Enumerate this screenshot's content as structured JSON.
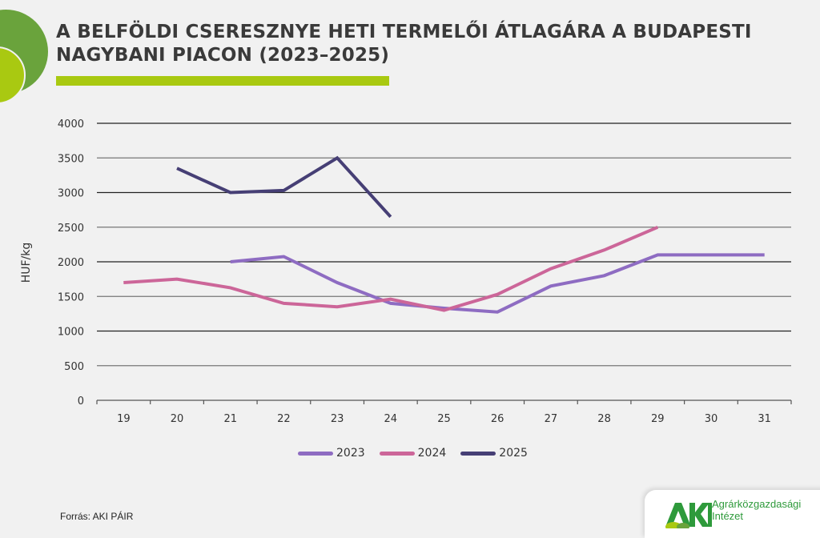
{
  "header": {
    "title": "A BELFÖLDI CSERESZNYE HETI TERMELŐI ÁTLAGÁRA A BUDAPESTI NAGYBANI PIACON (2023–2025)",
    "accent_color": "#a9c911",
    "decor_colors": [
      "#6aa33c",
      "#a9c911"
    ]
  },
  "chart_data": {
    "type": "line",
    "title": "A belföldi cseresznye heti termelői átlagára a budapesti nagybani piacon (2023–2025)",
    "xlabel": "",
    "ylabel": "HUF/kg",
    "ylim": [
      0,
      4000
    ],
    "yticks": [
      0,
      500,
      1000,
      1500,
      2000,
      2500,
      3000,
      3500,
      4000
    ],
    "grid": true,
    "legend_position": "bottom",
    "categories": [
      "19",
      "20",
      "21",
      "22",
      "23",
      "24",
      "25",
      "26",
      "27",
      "28",
      "29",
      "30",
      "31"
    ],
    "series": [
      {
        "name": "2023",
        "color": "#8e6cc2",
        "values": [
          null,
          null,
          2000,
          2075,
          1700,
          1400,
          1330,
          1275,
          1650,
          1800,
          2100,
          2100,
          2100
        ]
      },
      {
        "name": "2024",
        "color": "#cc6699",
        "values": [
          1700,
          1750,
          1625,
          1400,
          1350,
          1460,
          1300,
          1530,
          1900,
          2170,
          2500,
          null,
          null
        ]
      },
      {
        "name": "2025",
        "color": "#463f75",
        "values": [
          null,
          3350,
          3000,
          3030,
          3500,
          2650,
          null,
          null,
          null,
          null,
          null,
          null,
          null
        ]
      }
    ]
  },
  "legend": {
    "items": [
      {
        "label": "2023",
        "color": "#8e6cc2"
      },
      {
        "label": "2024",
        "color": "#cc6699"
      },
      {
        "label": "2025",
        "color": "#463f75"
      }
    ]
  },
  "footer": {
    "source": "Forrás: AKI PÁIR",
    "logo_line1": "Agrárközgazdasági",
    "logo_line2": "Intézet",
    "logo_color": "#2e9a3b"
  }
}
